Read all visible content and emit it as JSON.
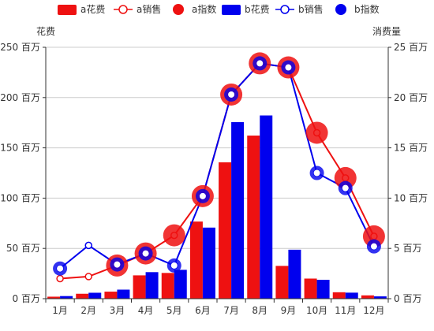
{
  "chart_data": {
    "type": "bar",
    "categories": [
      "1月",
      "2月",
      "3月",
      "4月",
      "5月",
      "6月",
      "7月",
      "8月",
      "9月",
      "10月",
      "11月",
      "12月"
    ],
    "left_axis": {
      "title": "花费",
      "range": [
        0,
        250
      ],
      "ticks": [
        0,
        50,
        100,
        150,
        200,
        250
      ],
      "tick_labels": [
        "0 百万",
        "50 百万",
        "100 百万",
        "150 百万",
        "200 百万",
        "250 百万"
      ]
    },
    "right_axis": {
      "title": "消费量",
      "range": [
        0,
        25
      ],
      "ticks": [
        0,
        5,
        10,
        15,
        20,
        25
      ],
      "tick_labels": [
        "0 百万",
        "5 百万",
        "10 百万",
        "15 百万",
        "20 百万",
        "25 百万"
      ]
    },
    "legend_position": "top-center",
    "series": [
      {
        "name": "a花费",
        "type": "bar",
        "axis": "left",
        "color": "#ee1111",
        "values": [
          2,
          4.9,
          7,
          23.2,
          25.6,
          76.7,
          135.6,
          162.2,
          32.6,
          20,
          6.4,
          3.3
        ]
      },
      {
        "name": "a销售",
        "type": "line",
        "axis": "right",
        "color": "#ee1111",
        "values": [
          2,
          2.2,
          3.3,
          4.5,
          6.3,
          10.2,
          20.3,
          23.4,
          23,
          16.5,
          12,
          6.2
        ]
      },
      {
        "name": "a指数",
        "type": "scatter",
        "axis": "right",
        "color": "#ee1111",
        "values": [
          null,
          null,
          3.3,
          4.5,
          6.3,
          10.2,
          20.3,
          23.4,
          23,
          16.5,
          12,
          6.2
        ]
      },
      {
        "name": "b花费",
        "type": "bar",
        "axis": "left",
        "color": "#0000ee",
        "values": [
          2.6,
          5.9,
          9,
          26.4,
          28.7,
          70.7,
          175.6,
          182.2,
          48.7,
          18.8,
          6,
          2.3
        ]
      },
      {
        "name": "b销售",
        "type": "line",
        "axis": "right",
        "color": "#0000ee",
        "values": [
          3,
          5.3,
          3.4,
          4.5,
          3.3,
          10.2,
          20.3,
          23.4,
          23,
          12.5,
          11,
          5.2
        ]
      },
      {
        "name": "b指数",
        "type": "scatter",
        "axis": "right",
        "color": "#0000ee",
        "values": [
          3,
          null,
          3.4,
          4.5,
          3.3,
          10.2,
          20.3,
          23.4,
          23,
          12.5,
          11,
          5.2
        ]
      }
    ]
  }
}
